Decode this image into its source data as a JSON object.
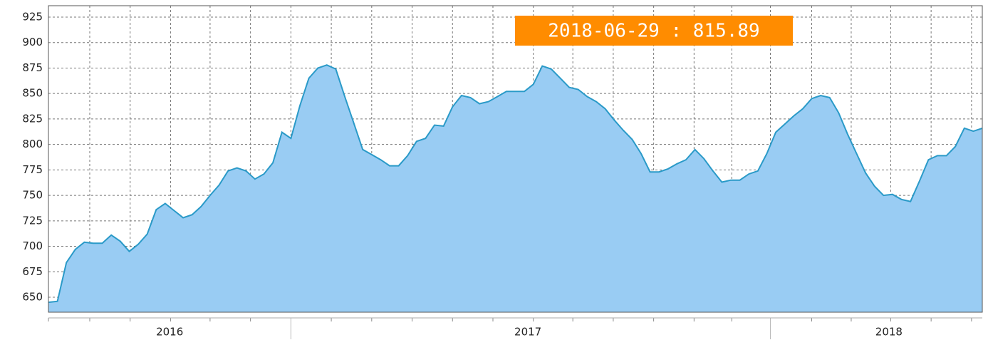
{
  "chart_data": {
    "type": "area",
    "annotation": "2018-06-29 : 815.89",
    "values": [
      645,
      646,
      684,
      697,
      704,
      703,
      703,
      711,
      705,
      695,
      702,
      712,
      736,
      742,
      735,
      728,
      731,
      739,
      750,
      760,
      774,
      777,
      774,
      766,
      771,
      782,
      812,
      806,
      838,
      865,
      875,
      878,
      874,
      847,
      821,
      795,
      790,
      785,
      779,
      779,
      789,
      803,
      806,
      819,
      818,
      837,
      848,
      846,
      840,
      842,
      847,
      852,
      852,
      852,
      859,
      877,
      874,
      865,
      856,
      854,
      847,
      842,
      835,
      824,
      814,
      805,
      791,
      773,
      773,
      776,
      781,
      785,
      795,
      786,
      774,
      763,
      765,
      765,
      771,
      774,
      791,
      812,
      820,
      828,
      835,
      845,
      848,
      846,
      831,
      810,
      791,
      772,
      759,
      750,
      751,
      746,
      744,
      764,
      785,
      789,
      789,
      798,
      816,
      813,
      815.89
    ],
    "color": "#99ccf3",
    "line_color": "#2a9ac8",
    "xlim": [
      0,
      104
    ],
    "xticks": [
      {
        "value": 13.5,
        "label": "2016"
      },
      {
        "value": 53.4,
        "label": "2017"
      },
      {
        "value": 93.6,
        "label": "2018"
      }
    ],
    "xminorticks": [
      0,
      4.6,
      9.1,
      13.6,
      18,
      22.5,
      31.5,
      36,
      40.5,
      45,
      49.5,
      54,
      58.4,
      62.9,
      67.4,
      71.9,
      76.1,
      85,
      89.4,
      93.8,
      98.3,
      102.8
    ],
    "xyearlines": [
      27,
      80.4
    ],
    "ylim": [
      635.3,
      936.2
    ],
    "yticks": [
      650,
      675,
      700,
      725,
      750,
      775,
      800,
      825,
      850,
      875,
      900,
      925
    ],
    "grid": true
  }
}
